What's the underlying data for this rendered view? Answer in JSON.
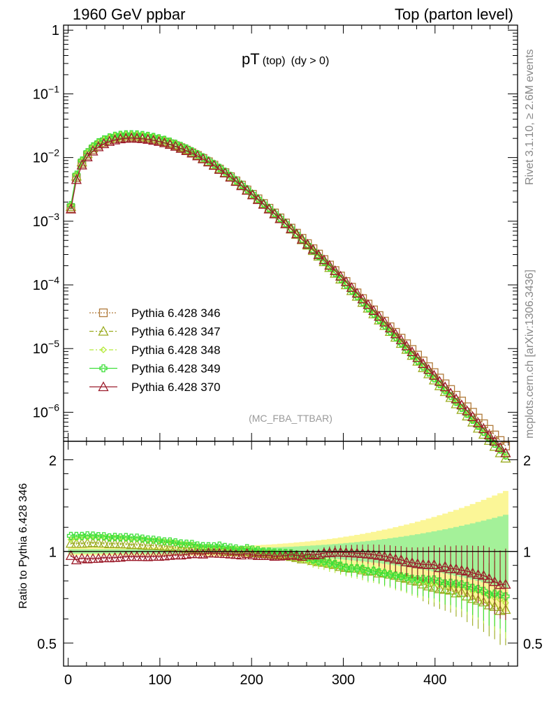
{
  "header": {
    "left": "1960 GeV ppbar",
    "right": "Top (parton level)"
  },
  "title": {
    "main": "pT",
    "sub1": "(top)",
    "sub2": "(dy > 0)"
  },
  "analysis_label": "(MC_FBA_TTBAR)",
  "side_text": {
    "rivet": "Rivet 3.1.10, ≥ 2.6M events",
    "mcplots": "mcplots.cern.ch [arXiv:1306.3436]"
  },
  "ratio_ylabel": "Ratio to Pythia 6.428 346",
  "top_y_ticks": [
    "1",
    "10^-1",
    "10^-2",
    "10^-3",
    "10^-4",
    "10^-5",
    "10^-6"
  ],
  "ratio_y_ticks": [
    "2",
    "1",
    "0.5"
  ],
  "x_ticks": [
    "0",
    "100",
    "200",
    "300",
    "400"
  ],
  "legend": [
    {
      "label": "Pythia 6.428 346",
      "color": "#b07a3a",
      "marker": "square",
      "dash": "dotted"
    },
    {
      "label": "Pythia 6.428 347",
      "color": "#9aab1f",
      "marker": "triangle",
      "dash": "dashdot"
    },
    {
      "label": "Pythia 6.428 348",
      "color": "#b5ea3a",
      "marker": "diamond",
      "dash": "dashdot"
    },
    {
      "label": "Pythia 6.428 349",
      "color": "#3ee03a",
      "marker": "cross",
      "dash": "solid"
    },
    {
      "label": "Pythia 6.428 370",
      "color": "#9b1b2a",
      "marker": "triangle",
      "dash": "solid"
    }
  ],
  "chart_data": {
    "type": "line",
    "top": {
      "yscale": "log",
      "ylim": [
        3.5e-07,
        1.2
      ],
      "xlim": [
        -5,
        490
      ]
    },
    "ratio": {
      "yscale": "log",
      "ylim": [
        0.42,
        2.3
      ],
      "reference": 1
    },
    "x": [
      3,
      9,
      15,
      21,
      27,
      33,
      39,
      45,
      51,
      57,
      63,
      69,
      75,
      81,
      87,
      93,
      99,
      105,
      111,
      117,
      123,
      129,
      135,
      141,
      147,
      153,
      159,
      165,
      171,
      177,
      183,
      189,
      195,
      201,
      207,
      213,
      219,
      225,
      231,
      237,
      243,
      249,
      255,
      261,
      267,
      273,
      279,
      285,
      291,
      297,
      303,
      309,
      315,
      321,
      327,
      333,
      339,
      345,
      351,
      357,
      363,
      369,
      375,
      381,
      387,
      393,
      399,
      405,
      411,
      417,
      423,
      429,
      435,
      441,
      447,
      453,
      459,
      465,
      471,
      477
    ],
    "series": [
      {
        "name": "Pythia 6.428 346",
        "values": [
          0.0016,
          0.0048,
          0.008,
          0.0108,
          0.0133,
          0.0155,
          0.0172,
          0.0187,
          0.0197,
          0.0205,
          0.0208,
          0.021,
          0.0208,
          0.0205,
          0.02,
          0.0193,
          0.0185,
          0.0176,
          0.0165,
          0.0154,
          0.0143,
          0.0131,
          0.0119,
          0.0108,
          0.0097,
          0.0086,
          0.0076,
          0.0066,
          0.0058,
          0.005,
          0.0043,
          0.0037,
          0.0031,
          0.00265,
          0.00225,
          0.0019,
          0.0016,
          0.00135,
          0.00113,
          0.00094,
          0.00078,
          0.00065,
          0.00054,
          0.000445,
          0.00037,
          0.000305,
          0.00025,
          0.000205,
          0.000168,
          0.000138,
          0.000113,
          9.2e-05,
          7.5e-05,
          6.1e-05,
          5e-05,
          4.05e-05,
          3.3e-05,
          2.7e-05,
          2.2e-05,
          1.8e-05,
          1.46e-05,
          1.19e-05,
          9.7e-06,
          7.9e-06,
          6.4e-06,
          5.2e-06,
          4.2e-06,
          3.45e-06,
          2.8e-06,
          2.28e-06,
          1.85e-06,
          1.5e-06,
          1.22e-06,
          1e-06,
          8.1e-07,
          6.6e-07,
          5.4e-07,
          4.4e-07,
          3.6e-07,
          2.95e-07
        ]
      },
      {
        "name": "Pythia 6.428 347",
        "values": [
          0.0017,
          0.0051,
          0.0085,
          0.0115,
          0.0142,
          0.0165,
          0.0183,
          0.0198,
          0.0209,
          0.0217,
          0.022,
          0.0221,
          0.0219,
          0.0215,
          0.0209,
          0.0202,
          0.0193,
          0.0183,
          0.0171,
          0.0159,
          0.0147,
          0.0134,
          0.0122,
          0.011,
          0.0098,
          0.0087,
          0.0077,
          0.0067,
          0.0058,
          0.005,
          0.0043,
          0.0037,
          0.0031,
          0.00263,
          0.00222,
          0.00187,
          0.00157,
          0.00132,
          0.0011,
          0.00091,
          0.00075,
          0.00062,
          0.00051,
          0.00042,
          0.000345,
          0.000282,
          0.00023,
          0.000187,
          0.000152,
          0.000123,
          0.0001,
          8.1e-05,
          6.6e-05,
          5.3e-05,
          4.3e-05,
          3.5e-05,
          2.8e-05,
          2.3e-05,
          1.85e-05,
          1.5e-05,
          1.2e-05,
          9.7e-06,
          7.8e-06,
          6.3e-06,
          5e-06,
          4e-06,
          3.2e-06,
          2.6e-06,
          2.1e-06,
          1.7e-06,
          1.35e-06,
          1.1e-06,
          8.7e-07,
          7e-07,
          5.6e-07,
          4.5e-07,
          3.6e-07,
          2.9e-07,
          2.3e-07,
          1.9e-07
        ]
      },
      {
        "name": "Pythia 6.428 348",
        "values": [
          0.00175,
          0.0053,
          0.0089,
          0.012,
          0.0148,
          0.0172,
          0.0191,
          0.0206,
          0.0218,
          0.0226,
          0.0229,
          0.023,
          0.0228,
          0.0224,
          0.0217,
          0.0209,
          0.02,
          0.0189,
          0.0177,
          0.0164,
          0.0151,
          0.0138,
          0.0125,
          0.0112,
          0.01,
          0.0089,
          0.0078,
          0.0068,
          0.0059,
          0.0051,
          0.00435,
          0.0037,
          0.00315,
          0.00266,
          0.00224,
          0.00188,
          0.00158,
          0.00132,
          0.0011,
          0.00091,
          0.00075,
          0.00062,
          0.00051,
          0.000415,
          0.00034,
          0.000278,
          0.000227,
          0.000184,
          0.00015,
          0.000122,
          9.9e-05,
          8e-05,
          6.5e-05,
          5.25e-05,
          4.25e-05,
          3.45e-05,
          2.8e-05,
          2.26e-05,
          1.83e-05,
          1.48e-05,
          1.2e-05,
          9.7e-06,
          7.8e-06,
          6.3e-06,
          5.1e-06,
          4.1e-06,
          3.3e-06,
          2.7e-06,
          2.2e-06,
          1.75e-06,
          1.42e-06,
          1.15e-06,
          9.2e-07,
          7.4e-07,
          6e-07,
          4.8e-07,
          3.9e-07,
          3.1e-07,
          2.5e-07,
          2e-07
        ]
      },
      {
        "name": "Pythia 6.428 349",
        "values": [
          0.0018,
          0.0054,
          0.009,
          0.0122,
          0.015,
          0.0174,
          0.0193,
          0.0208,
          0.022,
          0.0228,
          0.0232,
          0.0233,
          0.0231,
          0.0226,
          0.0219,
          0.0211,
          0.0201,
          0.019,
          0.0178,
          0.0165,
          0.0152,
          0.0139,
          0.0126,
          0.0113,
          0.0101,
          0.00895,
          0.0079,
          0.0069,
          0.006,
          0.00515,
          0.0044,
          0.00375,
          0.00318,
          0.00269,
          0.00227,
          0.0019,
          0.0016,
          0.00134,
          0.00112,
          0.00093,
          0.00077,
          0.000635,
          0.00052,
          0.000425,
          0.000348,
          0.000284,
          0.000232,
          0.000188,
          0.000153,
          0.000124,
          0.0001,
          8.1e-05,
          6.6e-05,
          5.35e-05,
          4.3e-05,
          3.5e-05,
          2.82e-05,
          2.28e-05,
          1.85e-05,
          1.5e-05,
          1.21e-05,
          9.8e-06,
          7.9e-06,
          6.4e-06,
          5.2e-06,
          4.2e-06,
          3.4e-06,
          2.75e-06,
          2.2e-06,
          1.8e-06,
          1.45e-06,
          1.17e-06,
          9.4e-07,
          7.6e-07,
          6.1e-07,
          4.9e-07,
          3.9e-07,
          3.2e-07,
          2.6e-07,
          2.1e-07
        ]
      },
      {
        "name": "Pythia 6.428 370",
        "values": [
          0.00155,
          0.0045,
          0.0076,
          0.0102,
          0.0126,
          0.0147,
          0.0164,
          0.0178,
          0.0188,
          0.0196,
          0.02,
          0.0202,
          0.02,
          0.0197,
          0.0192,
          0.0186,
          0.0178,
          0.017,
          0.016,
          0.015,
          0.0139,
          0.0128,
          0.0117,
          0.0106,
          0.0095,
          0.0085,
          0.0075,
          0.0065,
          0.0057,
          0.0049,
          0.0042,
          0.0036,
          0.00305,
          0.00258,
          0.00218,
          0.00184,
          0.00155,
          0.0013,
          0.00109,
          0.00091,
          0.00076,
          0.00063,
          0.00052,
          0.000435,
          0.00036,
          0.000298,
          0.000247,
          0.000203,
          0.000167,
          0.000137,
          0.000112,
          9.1e-05,
          7.4e-05,
          6e-05,
          4.9e-05,
          3.95e-05,
          3.2e-05,
          2.6e-05,
          2.1e-05,
          1.7e-05,
          1.37e-05,
          1.1e-05,
          8.9e-06,
          7.2e-06,
          5.8e-06,
          4.7e-06,
          3.8e-06,
          3.05e-06,
          2.5e-06,
          2e-06,
          1.62e-06,
          1.3e-06,
          1.05e-06,
          8.5e-07,
          6.8e-07,
          5.5e-07,
          4.4e-07,
          3.5e-07,
          2.8e-07,
          2.3e-07
        ]
      }
    ]
  }
}
